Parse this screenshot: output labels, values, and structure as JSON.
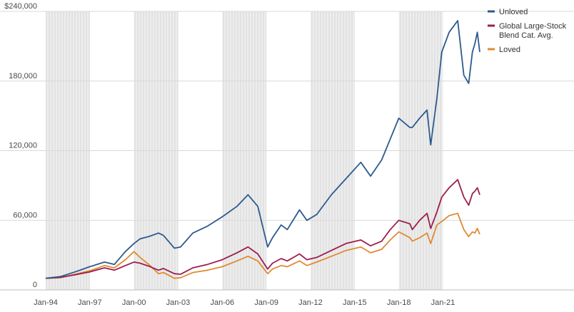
{
  "chart_data": {
    "type": "line",
    "title": "",
    "xlabel": "",
    "ylabel": "",
    "ylim": [
      0,
      240000
    ],
    "xlim": [
      "1994-01",
      "2023-07"
    ],
    "y_ticks": [
      {
        "value": 0,
        "label": "0"
      },
      {
        "value": 60000,
        "label": "60,000"
      },
      {
        "value": 120000,
        "label": "120,000"
      },
      {
        "value": 180000,
        "label": "180,000"
      },
      {
        "value": 240000,
        "label": "$240,000"
      }
    ],
    "x_ticks": [
      {
        "value": "1994-01",
        "label": "Jan-94"
      },
      {
        "value": "1997-01",
        "label": "Jan-97"
      },
      {
        "value": "2000-01",
        "label": "Jan-00"
      },
      {
        "value": "2003-01",
        "label": "Jan-03"
      },
      {
        "value": "2006-01",
        "label": "Jan-06"
      },
      {
        "value": "2009-01",
        "label": "Jan-09"
      },
      {
        "value": "2012-01",
        "label": "Jan-12"
      },
      {
        "value": "2015-01",
        "label": "Jan-15"
      },
      {
        "value": "2018-01",
        "label": "Jan-18"
      },
      {
        "value": "2021-01",
        "label": "Jan-21"
      }
    ],
    "grid": "horizontal",
    "legend_position": "right",
    "shaded_periods": [
      [
        "1994-01",
        "1997-01"
      ],
      [
        "2000-01",
        "2003-01"
      ],
      [
        "2006-01",
        "2009-01"
      ],
      [
        "2012-01",
        "2015-01"
      ],
      [
        "2018-01",
        "2021-01"
      ]
    ],
    "series": [
      {
        "name": "Unloved",
        "color": "#2d5a8e",
        "points": [
          [
            "1994-01",
            10000
          ],
          [
            "1995-01",
            11500
          ],
          [
            "1996-01",
            15500
          ],
          [
            "1997-01",
            20000
          ],
          [
            "1998-01",
            24000
          ],
          [
            "1998-09",
            22000
          ],
          [
            "1999-06",
            33000
          ],
          [
            "2000-01",
            40000
          ],
          [
            "2000-06",
            44000
          ],
          [
            "2001-01",
            46000
          ],
          [
            "2001-09",
            49000
          ],
          [
            "2002-01",
            47000
          ],
          [
            "2002-10",
            36000
          ],
          [
            "2003-03",
            37000
          ],
          [
            "2004-01",
            49000
          ],
          [
            "2005-01",
            55000
          ],
          [
            "2006-01",
            63000
          ],
          [
            "2007-01",
            72000
          ],
          [
            "2007-10",
            82000
          ],
          [
            "2008-06",
            72000
          ],
          [
            "2009-02",
            37000
          ],
          [
            "2009-06",
            45000
          ],
          [
            "2010-01",
            56000
          ],
          [
            "2010-06",
            52000
          ],
          [
            "2011-04",
            69000
          ],
          [
            "2011-10",
            60000
          ],
          [
            "2012-06",
            65000
          ],
          [
            "2013-06",
            82000
          ],
          [
            "2014-06",
            96000
          ],
          [
            "2015-06",
            110000
          ],
          [
            "2016-02",
            98000
          ],
          [
            "2016-11",
            112000
          ],
          [
            "2017-06",
            130000
          ],
          [
            "2018-01",
            148000
          ],
          [
            "2018-10",
            140000
          ],
          [
            "2018-12",
            140000
          ],
          [
            "2019-06",
            148000
          ],
          [
            "2019-12",
            155000
          ],
          [
            "2020-03",
            125000
          ],
          [
            "2020-08",
            165000
          ],
          [
            "2020-12",
            205000
          ],
          [
            "2021-06",
            222000
          ],
          [
            "2022-01",
            232000
          ],
          [
            "2022-06",
            185000
          ],
          [
            "2022-10",
            178000
          ],
          [
            "2023-01",
            205000
          ],
          [
            "2023-03",
            212000
          ],
          [
            "2023-05",
            222000
          ],
          [
            "2023-07",
            205000
          ]
        ]
      },
      {
        "name": "Global Large-Stock Blend Cat. Avg.",
        "color": "#9c1e4e",
        "points": [
          [
            "1994-01",
            10000
          ],
          [
            "1995-01",
            10800
          ],
          [
            "1996-01",
            13000
          ],
          [
            "1997-01",
            15500
          ],
          [
            "1998-01",
            19000
          ],
          [
            "1998-09",
            17000
          ],
          [
            "1999-06",
            21000
          ],
          [
            "2000-01",
            24000
          ],
          [
            "2000-06",
            23000
          ],
          [
            "2001-01",
            20500
          ],
          [
            "2001-09",
            17000
          ],
          [
            "2002-01",
            18500
          ],
          [
            "2002-10",
            14000
          ],
          [
            "2003-03",
            13500
          ],
          [
            "2004-01",
            19000
          ],
          [
            "2005-01",
            22000
          ],
          [
            "2006-01",
            26000
          ],
          [
            "2007-01",
            32000
          ],
          [
            "2007-10",
            37000
          ],
          [
            "2008-06",
            31000
          ],
          [
            "2009-02",
            18000
          ],
          [
            "2009-06",
            23000
          ],
          [
            "2010-01",
            27000
          ],
          [
            "2010-06",
            25000
          ],
          [
            "2011-04",
            31000
          ],
          [
            "2011-10",
            26000
          ],
          [
            "2012-06",
            28000
          ],
          [
            "2013-06",
            34000
          ],
          [
            "2014-06",
            40000
          ],
          [
            "2015-06",
            43000
          ],
          [
            "2016-02",
            38000
          ],
          [
            "2016-11",
            42000
          ],
          [
            "2017-06",
            52000
          ],
          [
            "2018-01",
            60000
          ],
          [
            "2018-10",
            57000
          ],
          [
            "2018-12",
            52000
          ],
          [
            "2019-06",
            60000
          ],
          [
            "2019-12",
            66000
          ],
          [
            "2020-03",
            53000
          ],
          [
            "2020-08",
            67000
          ],
          [
            "2020-12",
            80000
          ],
          [
            "2021-06",
            88000
          ],
          [
            "2022-01",
            95000
          ],
          [
            "2022-06",
            80000
          ],
          [
            "2022-10",
            73000
          ],
          [
            "2023-01",
            83000
          ],
          [
            "2023-03",
            85000
          ],
          [
            "2023-05",
            88000
          ],
          [
            "2023-07",
            82000
          ]
        ]
      },
      {
        "name": "Loved",
        "color": "#e08a33",
        "points": [
          [
            "1994-01",
            10000
          ],
          [
            "1995-01",
            10500
          ],
          [
            "1996-01",
            13500
          ],
          [
            "1997-01",
            16500
          ],
          [
            "1998-01",
            21000
          ],
          [
            "1998-09",
            19000
          ],
          [
            "1999-06",
            26000
          ],
          [
            "2000-01",
            33000
          ],
          [
            "2000-06",
            28000
          ],
          [
            "2001-01",
            22000
          ],
          [
            "2001-09",
            14000
          ],
          [
            "2002-01",
            15000
          ],
          [
            "2002-10",
            10000
          ],
          [
            "2003-03",
            10500
          ],
          [
            "2004-01",
            15000
          ],
          [
            "2005-01",
            17000
          ],
          [
            "2006-01",
            20000
          ],
          [
            "2007-01",
            25000
          ],
          [
            "2007-10",
            29000
          ],
          [
            "2008-06",
            25000
          ],
          [
            "2009-02",
            14000
          ],
          [
            "2009-06",
            18000
          ],
          [
            "2010-01",
            21000
          ],
          [
            "2010-06",
            20000
          ],
          [
            "2011-04",
            25000
          ],
          [
            "2011-10",
            21000
          ],
          [
            "2012-06",
            24000
          ],
          [
            "2013-06",
            29000
          ],
          [
            "2014-06",
            34000
          ],
          [
            "2015-06",
            37000
          ],
          [
            "2016-02",
            32000
          ],
          [
            "2016-11",
            35000
          ],
          [
            "2017-06",
            43000
          ],
          [
            "2018-01",
            50000
          ],
          [
            "2018-10",
            45000
          ],
          [
            "2018-12",
            42000
          ],
          [
            "2019-06",
            45000
          ],
          [
            "2019-12",
            49000
          ],
          [
            "2020-03",
            40000
          ],
          [
            "2020-08",
            56000
          ],
          [
            "2020-12",
            59000
          ],
          [
            "2021-06",
            64000
          ],
          [
            "2022-01",
            66000
          ],
          [
            "2022-06",
            52000
          ],
          [
            "2022-10",
            46000
          ],
          [
            "2023-01",
            50000
          ],
          [
            "2023-03",
            49000
          ],
          [
            "2023-05",
            53000
          ],
          [
            "2023-07",
            48000
          ]
        ]
      }
    ]
  }
}
